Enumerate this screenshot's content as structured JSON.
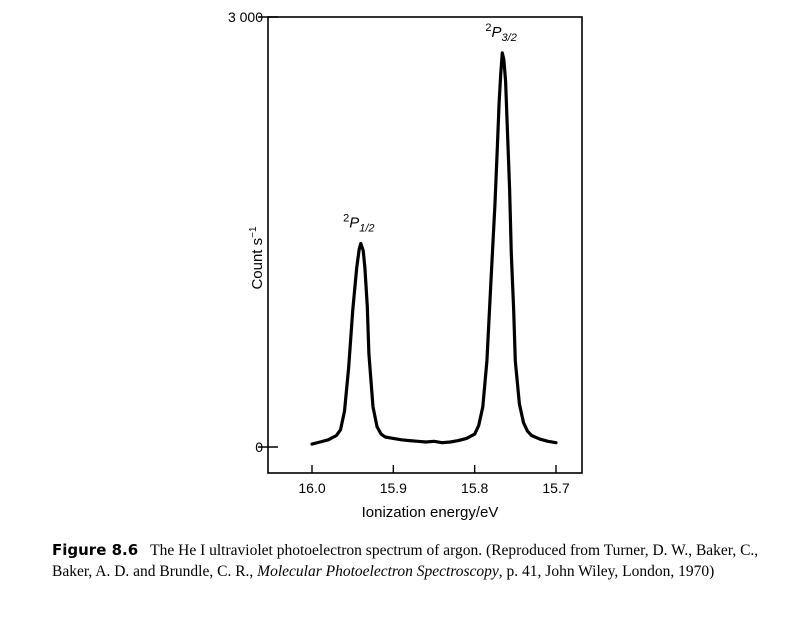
{
  "chart_data": {
    "type": "line",
    "xlabel": "Ionization energy/eV",
    "ylabel": "Count s",
    "ylabel_sup": "−1",
    "x_reversed": true,
    "xlim": [
      16.04,
      15.67
    ],
    "ylim": [
      0,
      3000
    ],
    "x_ticks": [
      {
        "value": 16.0,
        "label": "16.0"
      },
      {
        "value": 15.9,
        "label": "15.9"
      },
      {
        "value": 15.8,
        "label": "15.8"
      },
      {
        "value": 15.7,
        "label": "15.7"
      }
    ],
    "y_ticks": [
      {
        "value": 3000,
        "label": "3 000"
      },
      {
        "value": 0,
        "label": "0"
      }
    ],
    "series": [
      {
        "x": [
          16.0,
          15.99,
          15.98,
          15.97,
          15.965,
          15.96,
          15.955,
          15.95,
          15.945,
          15.942,
          15.94,
          15.937,
          15.935,
          15.932,
          15.93,
          15.925,
          15.92,
          15.915,
          15.91,
          15.9,
          15.89,
          15.88,
          15.87,
          15.86,
          15.85,
          15.84,
          15.83,
          15.82,
          15.81,
          15.8,
          15.795,
          15.79,
          15.785,
          15.78,
          15.775,
          15.772,
          15.77,
          15.768,
          15.766,
          15.764,
          15.762,
          15.76,
          15.757,
          15.755,
          15.752,
          15.75,
          15.745,
          15.74,
          15.735,
          15.73,
          15.72,
          15.71,
          15.7
        ],
        "y": [
          20,
          35,
          50,
          80,
          120,
          250,
          550,
          950,
          1250,
          1380,
          1420,
          1370,
          1250,
          980,
          650,
          280,
          140,
          90,
          70,
          60,
          50,
          45,
          40,
          35,
          40,
          30,
          35,
          45,
          60,
          90,
          150,
          280,
          600,
          1150,
          1700,
          2100,
          2400,
          2600,
          2750,
          2700,
          2550,
          2250,
          1800,
          1350,
          950,
          600,
          300,
          170,
          110,
          80,
          55,
          40,
          30
        ]
      }
    ],
    "annotations": [
      {
        "x": 15.94,
        "y": 1420,
        "term": "P",
        "superscript": "2",
        "subscript": "1/2"
      },
      {
        "x": 15.765,
        "y": 2750,
        "term": "P",
        "superscript": "2",
        "subscript": "3/2"
      }
    ]
  },
  "caption": {
    "figure_number": "Figure 8.6",
    "text_1": "The He I ultraviolet photoelectron spectrum of argon. (Reproduced from Turner, D. W., Baker, C., Baker, A. D. and Brundle, C. R., ",
    "book_title": "Molecular Photoelectron Spectroscopy",
    "text_2": ", p. 41, John Wiley, London, 1970)"
  }
}
